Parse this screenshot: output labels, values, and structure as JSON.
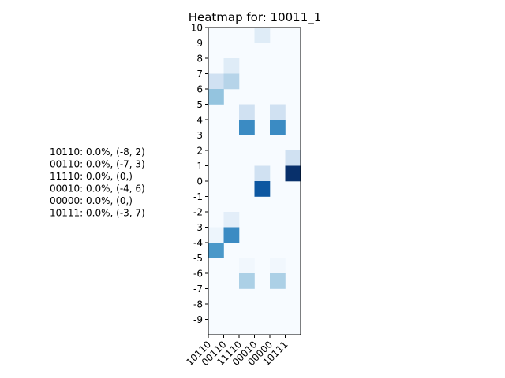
{
  "chart_data": {
    "type": "heatmap",
    "title": "Heatmap for: 10011_1",
    "xlabel": "",
    "ylabel": "",
    "colormap": "Blues",
    "x_categories": [
      "10110",
      "00110",
      "11110",
      "00010",
      "00000",
      "10111"
    ],
    "y_range": [
      -9,
      10
    ],
    "y_ticks": [
      "10",
      "9",
      "8",
      "7",
      "6",
      "5",
      "4",
      "3",
      "2",
      "1",
      "0",
      "-1",
      "-2",
      "-3",
      "-4",
      "-5",
      "-6",
      "-7",
      "-8",
      "-9"
    ],
    "cells": [
      {
        "x": "10110",
        "y": 7,
        "value": 0.2
      },
      {
        "x": "10110",
        "y": 6,
        "value": 0.4
      },
      {
        "x": "10110",
        "y": -3,
        "value": 0.05
      },
      {
        "x": "10110",
        "y": -4,
        "value": 0.6
      },
      {
        "x": "00110",
        "y": 8,
        "value": 0.12
      },
      {
        "x": "00110",
        "y": 7,
        "value": 0.3
      },
      {
        "x": "00110",
        "y": -2,
        "value": 0.1
      },
      {
        "x": "00110",
        "y": -3,
        "value": 0.65
      },
      {
        "x": "11110",
        "y": 5,
        "value": 0.2
      },
      {
        "x": "11110",
        "y": 4,
        "value": 0.65
      },
      {
        "x": "11110",
        "y": -5,
        "value": 0.03
      },
      {
        "x": "11110",
        "y": -6,
        "value": 0.33
      },
      {
        "x": "00010",
        "y": 10,
        "value": 0.12
      },
      {
        "x": "00010",
        "y": 1,
        "value": 0.2
      },
      {
        "x": "00010",
        "y": 0,
        "value": 0.85
      },
      {
        "x": "00000",
        "y": 5,
        "value": 0.2
      },
      {
        "x": "00000",
        "y": 4,
        "value": 0.65
      },
      {
        "x": "00000",
        "y": -5,
        "value": 0.03
      },
      {
        "x": "00000",
        "y": -6,
        "value": 0.33
      },
      {
        "x": "10111",
        "y": 2,
        "value": 0.2
      },
      {
        "x": "10111",
        "y": 1,
        "value": 1.0
      }
    ],
    "annotations": [
      "10110: 0.0%, (-8, 2)",
      "00110: 0.0%, (-7, 3)",
      "11110: 0.0%, (0,)",
      "00010: 0.0%, (-4, 6)",
      "00000: 0.0%, (0,)",
      "10111: 0.0%, (-3, 7)"
    ]
  }
}
